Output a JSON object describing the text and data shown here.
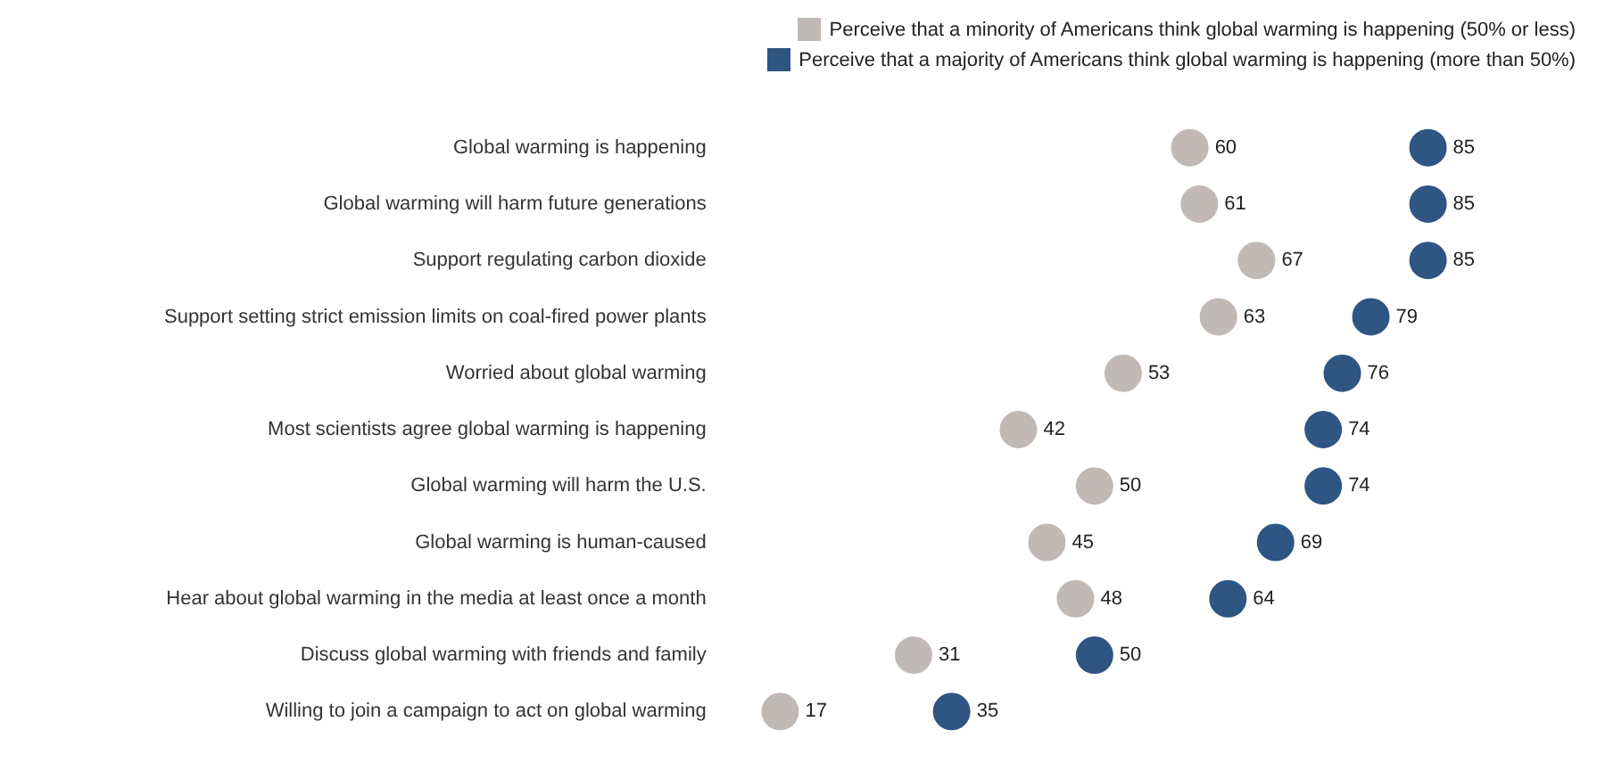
{
  "chart_data": {
    "type": "scatter",
    "orientation": "horizontal",
    "categories": [
      "Global warming is happening",
      "Global warming will harm future generations",
      "Support regulating carbon dioxide",
      "Support setting strict emission limits on coal-fired power plants",
      "Worried about global warming",
      "Most scientists agree global warming is happening",
      "Global warming will harm the U.S.",
      "Global warming is human-caused",
      "Hear about global warming in the media at least once a month",
      "Discuss global warming with friends and family",
      "Willing to join a campaign to act on global warming"
    ],
    "series": [
      {
        "name": "Perceive that a minority of Americans think global warming is happening (50% or less)",
        "color": "#c1b9b6",
        "values": [
          60,
          61,
          67,
          63,
          53,
          42,
          50,
          45,
          48,
          31,
          17
        ]
      },
      {
        "name": "Perceive that a majority of Americans think global warming is happening (more than 50%)",
        "color": "#2f5583",
        "values": [
          85,
          85,
          85,
          79,
          76,
          74,
          74,
          69,
          64,
          50,
          35
        ]
      }
    ],
    "tick_labels": "y",
    "grid": false,
    "legend": "top right",
    "marker": "circle",
    "data_labels": true
  }
}
